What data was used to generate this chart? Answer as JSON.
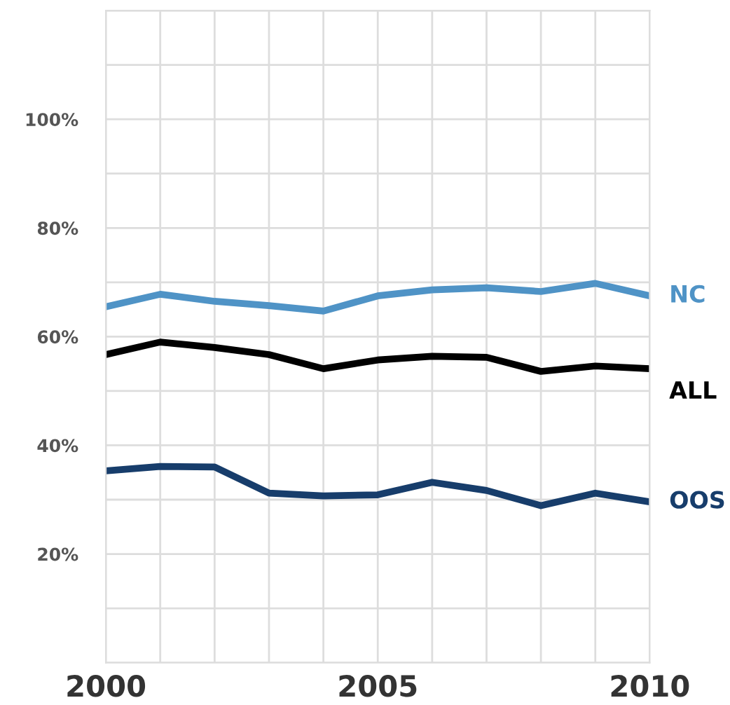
{
  "chart_data": {
    "type": "line",
    "x": [
      2000,
      2001,
      2002,
      2003,
      2004,
      2005,
      2006,
      2007,
      2008,
      2009,
      2010
    ],
    "series": [
      {
        "name": "NC",
        "color": "#4f93c6",
        "values": [
          65.5,
          67.8,
          66.5,
          65.7,
          64.7,
          67.5,
          68.6,
          69,
          68.3,
          69.8,
          67.5
        ]
      },
      {
        "name": "ALL",
        "color": "#000000",
        "values": [
          56.7,
          59,
          58,
          56.7,
          54.1,
          55.7,
          56.4,
          56.2,
          53.6,
          54.6,
          54.1
        ]
      },
      {
        "name": "OOS",
        "color": "#173d6b",
        "values": [
          35.3,
          36.1,
          36,
          31.2,
          30.7,
          30.9,
          33.2,
          31.7,
          28.9,
          31.2,
          29.6
        ]
      }
    ],
    "xlim": [
      2000,
      2010
    ],
    "xticks": [
      2000,
      {
        "value": 2001,
        "label": null
      },
      {
        "value": 2002,
        "label": null
      },
      {
        "value": 2003,
        "label": null
      },
      {
        "value": 2004,
        "label": null
      },
      2005,
      {
        "value": 2006,
        "label": null
      },
      {
        "value": 2007,
        "label": null
      },
      {
        "value": 2008,
        "label": null
      },
      {
        "value": 2009,
        "label": null
      },
      2010
    ],
    "ylim": [
      0,
      120
    ],
    "yticks": [
      {
        "value": 0,
        "label": null
      },
      {
        "value": 10,
        "label": null
      },
      {
        "value": 20,
        "label": "20%"
      },
      {
        "value": 30,
        "label": null
      },
      {
        "value": 40,
        "label": "40%"
      },
      {
        "value": 50,
        "label": null
      },
      {
        "value": 60,
        "label": "60%"
      },
      {
        "value": 70,
        "label": null
      },
      {
        "value": 80,
        "label": "80%"
      },
      {
        "value": 90,
        "label": null
      },
      {
        "value": 100,
        "label": "100%"
      },
      {
        "value": 110,
        "label": null
      },
      {
        "value": 120,
        "label": null
      }
    ],
    "grid": true,
    "legend": false,
    "marker": "none",
    "line_style": "solid"
  }
}
